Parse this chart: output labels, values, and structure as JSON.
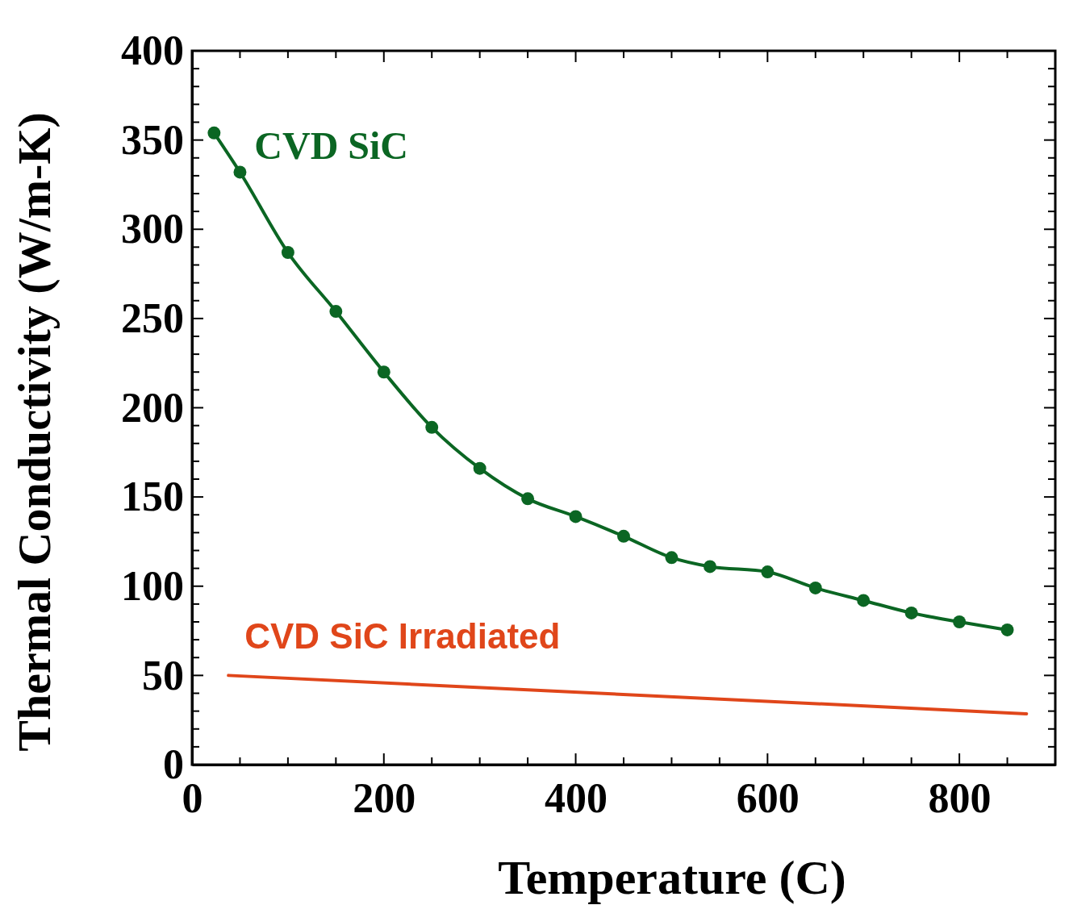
{
  "chart_data": {
    "type": "line",
    "xlabel": "Temperature (C)",
    "ylabel": "Thermal Conductivity (W/m-K)",
    "xlim": [
      0,
      900
    ],
    "ylim": [
      0,
      400
    ],
    "xticks": [
      0,
      {
        "value": 50,
        "label": null
      },
      {
        "value": 100,
        "label": null
      },
      {
        "value": 150,
        "label": null
      },
      200,
      {
        "value": 250,
        "label": null
      },
      {
        "value": 300,
        "label": null
      },
      {
        "value": 350,
        "label": null
      },
      400,
      {
        "value": 450,
        "label": null
      },
      {
        "value": 500,
        "label": null
      },
      {
        "value": 550,
        "label": null
      },
      600,
      {
        "value": 650,
        "label": null
      },
      {
        "value": 700,
        "label": null
      },
      {
        "value": 750,
        "label": null
      },
      800,
      {
        "value": 850,
        "label": null
      },
      {
        "value": 900,
        "label": null
      }
    ],
    "yticks": [
      0,
      {
        "value": 10,
        "label": null
      },
      {
        "value": 20,
        "label": null
      },
      {
        "value": 30,
        "label": null
      },
      {
        "value": 40,
        "label": null
      },
      50,
      {
        "value": 60,
        "label": null
      },
      {
        "value": 70,
        "label": null
      },
      {
        "value": 80,
        "label": null
      },
      {
        "value": 90,
        "label": null
      },
      100,
      {
        "value": 110,
        "label": null
      },
      {
        "value": 120,
        "label": null
      },
      {
        "value": 130,
        "label": null
      },
      {
        "value": 140,
        "label": null
      },
      150,
      {
        "value": 160,
        "label": null
      },
      {
        "value": 170,
        "label": null
      },
      {
        "value": 180,
        "label": null
      },
      {
        "value": 190,
        "label": null
      },
      200,
      {
        "value": 210,
        "label": null
      },
      {
        "value": 220,
        "label": null
      },
      {
        "value": 230,
        "label": null
      },
      {
        "value": 240,
        "label": null
      },
      250,
      {
        "value": 260,
        "label": null
      },
      {
        "value": 270,
        "label": null
      },
      {
        "value": 280,
        "label": null
      },
      {
        "value": 290,
        "label": null
      },
      300,
      {
        "value": 310,
        "label": null
      },
      {
        "value": 320,
        "label": null
      },
      {
        "value": 330,
        "label": null
      },
      {
        "value": 340,
        "label": null
      },
      350,
      {
        "value": 360,
        "label": null
      },
      {
        "value": 370,
        "label": null
      },
      {
        "value": 380,
        "label": null
      },
      {
        "value": 390,
        "label": null
      },
      400
    ],
    "grid": false,
    "legend": false,
    "series": [
      {
        "name": "CVD SiC",
        "color": "#0b6623",
        "marker": "circle",
        "x": [
          23,
          50,
          100,
          150,
          200,
          250,
          300,
          350,
          400,
          450,
          500,
          540,
          600,
          650,
          700,
          750,
          800,
          850
        ],
        "values": [
          354,
          332,
          287,
          254,
          220,
          189,
          166,
          149,
          139,
          128,
          116,
          111,
          108,
          99,
          92,
          85,
          80,
          75.5
        ]
      },
      {
        "name": "CVD SiC Irradiated",
        "color": "#e0461a",
        "marker": "none",
        "x": [
          38,
          870
        ],
        "values": [
          50,
          28.5
        ]
      }
    ]
  }
}
